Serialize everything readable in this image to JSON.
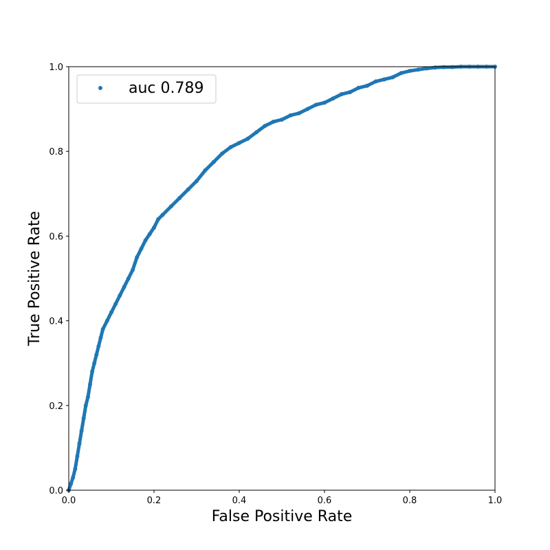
{
  "chart_data": {
    "type": "scatter",
    "title": "",
    "xlabel": "False Positive Rate",
    "ylabel": "True Positive Rate",
    "xlim": [
      0.0,
      1.0
    ],
    "ylim": [
      0.0,
      1.0
    ],
    "x_ticks": [
      "0.0",
      "0.2",
      "0.4",
      "0.6",
      "0.8",
      "1.0"
    ],
    "y_ticks": [
      "0.0",
      "0.2",
      "0.4",
      "0.6",
      "0.8",
      "1.0"
    ],
    "grid": false,
    "legend_position": "top-left",
    "series": [
      {
        "name": "auc 0.789",
        "color": "#1f77b4",
        "marker": "dot",
        "x": [
          0.0,
          0.005,
          0.01,
          0.015,
          0.02,
          0.025,
          0.03,
          0.035,
          0.04,
          0.045,
          0.05,
          0.055,
          0.06,
          0.065,
          0.07,
          0.075,
          0.08,
          0.09,
          0.1,
          0.11,
          0.12,
          0.13,
          0.14,
          0.15,
          0.16,
          0.17,
          0.18,
          0.19,
          0.2,
          0.21,
          0.22,
          0.24,
          0.26,
          0.28,
          0.3,
          0.32,
          0.34,
          0.36,
          0.38,
          0.4,
          0.42,
          0.44,
          0.46,
          0.48,
          0.5,
          0.52,
          0.54,
          0.56,
          0.58,
          0.6,
          0.62,
          0.64,
          0.66,
          0.68,
          0.7,
          0.72,
          0.74,
          0.76,
          0.78,
          0.8,
          0.82,
          0.84,
          0.86,
          0.88,
          0.9,
          0.92,
          0.94,
          0.96,
          0.98,
          1.0
        ],
        "y": [
          0.0,
          0.015,
          0.03,
          0.05,
          0.08,
          0.11,
          0.14,
          0.17,
          0.2,
          0.22,
          0.25,
          0.28,
          0.3,
          0.32,
          0.34,
          0.36,
          0.38,
          0.4,
          0.42,
          0.44,
          0.46,
          0.48,
          0.5,
          0.52,
          0.55,
          0.57,
          0.59,
          0.605,
          0.62,
          0.64,
          0.65,
          0.67,
          0.69,
          0.71,
          0.73,
          0.755,
          0.775,
          0.795,
          0.81,
          0.82,
          0.83,
          0.845,
          0.86,
          0.87,
          0.875,
          0.885,
          0.89,
          0.9,
          0.91,
          0.915,
          0.925,
          0.935,
          0.94,
          0.95,
          0.955,
          0.965,
          0.97,
          0.975,
          0.985,
          0.99,
          0.993,
          0.996,
          0.998,
          0.999,
          0.999,
          1.0,
          1.0,
          1.0,
          1.0,
          1.0
        ]
      }
    ]
  }
}
